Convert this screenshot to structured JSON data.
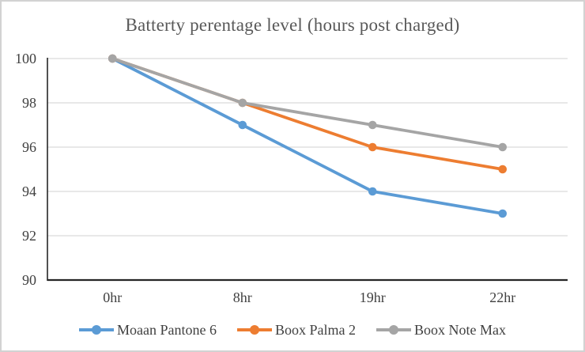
{
  "chart_data": {
    "type": "line",
    "title": "Batterty perentage level (hours post charged)",
    "categories": [
      "0hr",
      "8hr",
      "19hr",
      "22hr"
    ],
    "series": [
      {
        "name": "Moaan Pantone 6",
        "color": "#5B9BD5",
        "values": [
          100,
          97,
          94,
          93
        ]
      },
      {
        "name": "Boox Palma 2",
        "color": "#ED7D31",
        "values": [
          100,
          98,
          96,
          95
        ]
      },
      {
        "name": "Boox Note Max",
        "color": "#A5A5A5",
        "values": [
          100,
          98,
          97,
          96
        ]
      }
    ],
    "xlabel": "",
    "ylabel": "",
    "ylim": [
      90,
      100
    ],
    "yticks": [
      90,
      92,
      94,
      96,
      98,
      100
    ],
    "grid": true,
    "gridline_color": "#d9d9d9",
    "axis_color": "#262626",
    "text_color": "#404040",
    "legend_position": "bottom"
  }
}
